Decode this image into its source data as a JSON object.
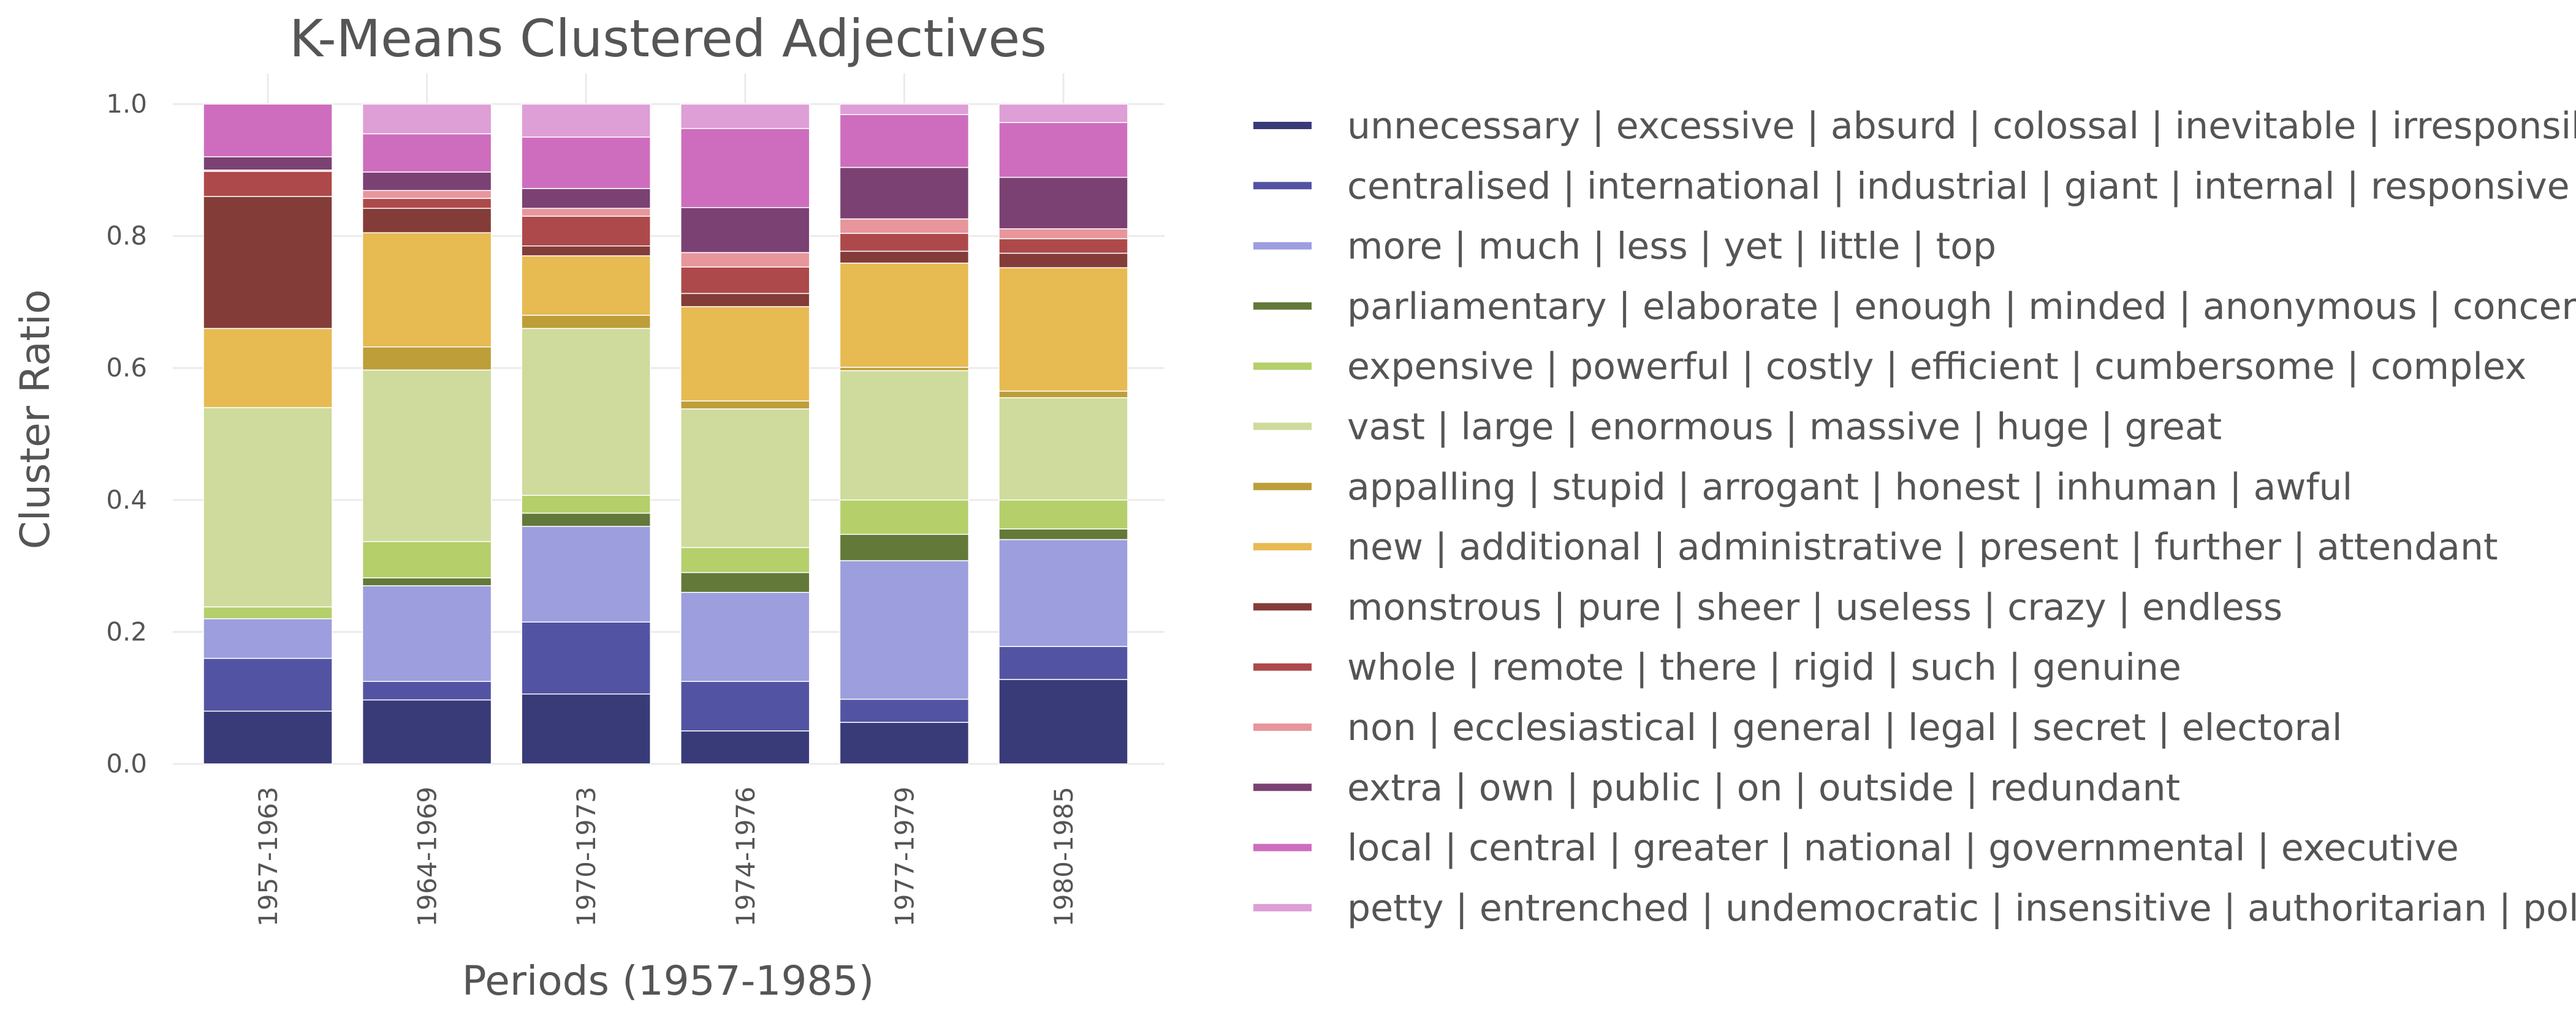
{
  "chart_data": {
    "type": "bar",
    "stacked": true,
    "title": "K-Means Clustered Adjectives",
    "xlabel": "Periods (1957-1985)",
    "ylabel": "Cluster Ratio",
    "ylim": [
      0,
      1
    ],
    "yticks": [
      "0.0",
      "0.2",
      "0.4",
      "0.6",
      "0.8",
      "1.0"
    ],
    "grid": true,
    "legend_position": "right",
    "categories": [
      "1957-1963",
      "1964-1969",
      "1970-1973",
      "1974-1976",
      "1977-1979",
      "1980-1985"
    ],
    "series": [
      {
        "name": "unnecessary | excessive | absurd | colossal | inevitable | irresponsible",
        "color": "#393b79",
        "values": [
          0.08,
          0.097,
          0.106,
          0.05,
          0.063,
          0.128
        ]
      },
      {
        "name": "centralised | international | industrial | giant | internal | responsive",
        "color": "#5254a3",
        "values": [
          0.08,
          0.028,
          0.109,
          0.075,
          0.035,
          0.05
        ]
      },
      {
        "name": "more | much | less | yet | little | top",
        "color": "#9c9ede",
        "values": [
          0.06,
          0.145,
          0.145,
          0.135,
          0.21,
          0.162
        ]
      },
      {
        "name": "parliamentary | elaborate | enough | minded | anonymous | concerned",
        "color": "#637939",
        "values": [
          0.0,
          0.012,
          0.02,
          0.03,
          0.04,
          0.016
        ]
      },
      {
        "name": "expensive | powerful | costly | efficient | cumbersome | complex",
        "color": "#b5cf6b",
        "values": [
          0.018,
          0.055,
          0.027,
          0.038,
          0.052,
          0.044
        ]
      },
      {
        "name": "vast | large | enormous | massive | huge | great",
        "color": "#cedb9c",
        "values": [
          0.302,
          0.26,
          0.253,
          0.21,
          0.196,
          0.155
        ]
      },
      {
        "name": "appalling | stupid | arrogant | honest | inhuman | awful",
        "color": "#bd9e39",
        "values": [
          0.0,
          0.035,
          0.02,
          0.012,
          0.005,
          0.01
        ]
      },
      {
        "name": "new | additional | administrative | present | further | attendant",
        "color": "#e7ba52",
        "values": [
          0.12,
          0.173,
          0.09,
          0.143,
          0.158,
          0.187
        ]
      },
      {
        "name": "monstrous | pure | sheer | useless | crazy | endless",
        "color": "#843c39",
        "values": [
          0.2,
          0.037,
          0.015,
          0.02,
          0.018,
          0.022
        ]
      },
      {
        "name": "whole | remote | there | rigid | such | genuine",
        "color": "#ad494a",
        "values": [
          0.038,
          0.015,
          0.045,
          0.04,
          0.027,
          0.022
        ]
      },
      {
        "name": "non | ecclesiastical | general | legal | secret | electoral",
        "color": "#e7969c",
        "values": [
          0.002,
          0.012,
          0.012,
          0.022,
          0.022,
          0.015
        ]
      },
      {
        "name": "extra | own | public | on | outside | redundant",
        "color": "#7b4173",
        "values": [
          0.02,
          0.028,
          0.03,
          0.068,
          0.078,
          0.078
        ]
      },
      {
        "name": "local | central | greater | national | governmental | executive",
        "color": "#ce6dbd",
        "values": [
          0.08,
          0.058,
          0.078,
          0.12,
          0.08,
          0.083
        ]
      },
      {
        "name": "petty | entrenched | undemocratic | insensitive | authoritarian | political",
        "color": "#de9ed6",
        "values": [
          0.0,
          0.045,
          0.05,
          0.037,
          0.016,
          0.028
        ]
      }
    ]
  }
}
